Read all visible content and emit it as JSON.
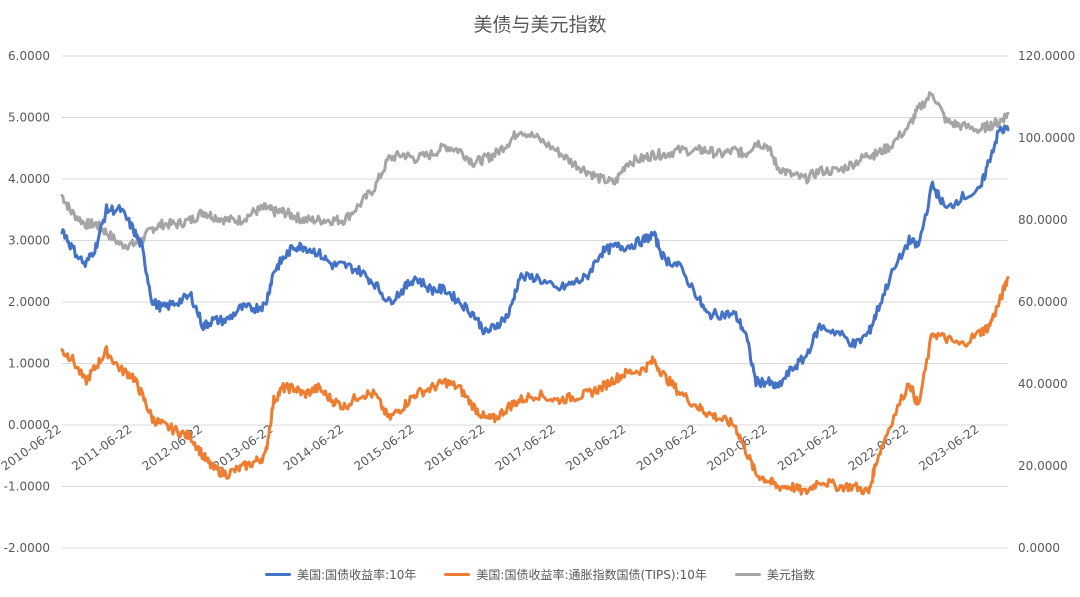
{
  "chart_data": {
    "type": "line",
    "title": "美债与美元指数",
    "left_axis": {
      "ylim": [
        -2,
        6
      ],
      "ticks": [
        "-2.0000",
        "-1.0000",
        "0.0000",
        "1.0000",
        "2.0000",
        "3.0000",
        "4.0000",
        "5.0000",
        "6.0000"
      ]
    },
    "right_axis": {
      "ylim": [
        0,
        120
      ],
      "ticks": [
        "0.0000",
        "20.0000",
        "40.0000",
        "60.0000",
        "80.0000",
        "100.0000",
        "120.0000"
      ]
    },
    "x_ticks": [
      "2010-06-22",
      "2011-06-22",
      "2012-06-22",
      "2013-06-22",
      "2014-06-22",
      "2015-06-22",
      "2016-06-22",
      "2017-06-22",
      "2018-06-22",
      "2019-06-22",
      "2020-06-22",
      "2021-06-22",
      "2022-06-22",
      "2023-06-22"
    ],
    "x_range": [
      2010.47,
      2023.87
    ],
    "series": [
      {
        "name": "美国:国债收益率:10年",
        "axis": "left",
        "color": "#4472C4",
        "x": [
          2010.47,
          2010.6,
          2010.8,
          2010.95,
          2011.1,
          2011.3,
          2011.47,
          2011.6,
          2011.75,
          2011.9,
          2012.1,
          2012.3,
          2012.47,
          2012.6,
          2012.8,
          2013.0,
          2013.2,
          2013.35,
          2013.47,
          2013.6,
          2013.75,
          2013.9,
          2014.1,
          2014.3,
          2014.47,
          2014.7,
          2014.9,
          2015.1,
          2015.3,
          2015.47,
          2015.7,
          2015.9,
          2016.1,
          2016.3,
          2016.47,
          2016.6,
          2016.8,
          2016.95,
          2017.2,
          2017.47,
          2017.7,
          2017.9,
          2018.1,
          2018.3,
          2018.47,
          2018.7,
          2018.85,
          2019.0,
          2019.2,
          2019.47,
          2019.6,
          2019.8,
          2020.0,
          2020.15,
          2020.3,
          2020.47,
          2020.6,
          2020.8,
          2021.0,
          2021.2,
          2021.47,
          2021.7,
          2021.9,
          2022.0,
          2022.2,
          2022.47,
          2022.6,
          2022.8,
          2023.0,
          2023.2,
          2023.47,
          2023.6,
          2023.75,
          2023.87
        ],
        "values": [
          3.2,
          2.9,
          2.6,
          2.9,
          3.5,
          3.5,
          3.2,
          2.9,
          2.0,
          1.9,
          2.0,
          2.1,
          1.6,
          1.7,
          1.7,
          1.9,
          1.9,
          1.95,
          2.5,
          2.7,
          2.9,
          2.9,
          2.8,
          2.6,
          2.6,
          2.5,
          2.3,
          2.0,
          2.2,
          2.4,
          2.2,
          2.2,
          2.0,
          1.8,
          1.5,
          1.6,
          1.8,
          2.4,
          2.4,
          2.2,
          2.3,
          2.4,
          2.8,
          2.9,
          2.9,
          3.0,
          3.1,
          2.7,
          2.6,
          2.1,
          1.8,
          1.8,
          1.8,
          1.5,
          0.7,
          0.7,
          0.6,
          0.9,
          1.1,
          1.6,
          1.5,
          1.3,
          1.5,
          1.8,
          2.4,
          3.0,
          2.9,
          3.9,
          3.5,
          3.7,
          3.8,
          4.3,
          4.8,
          4.8
        ]
      },
      {
        "name": "美国:国债收益率:通胀指数国债(TIPS):10年",
        "axis": "left",
        "color": "#ED7D31",
        "x": [
          2010.47,
          2010.6,
          2010.8,
          2010.95,
          2011.1,
          2011.3,
          2011.47,
          2011.6,
          2011.75,
          2011.9,
          2012.1,
          2012.3,
          2012.47,
          2012.6,
          2012.8,
          2013.0,
          2013.2,
          2013.35,
          2013.47,
          2013.6,
          2013.75,
          2013.9,
          2014.1,
          2014.3,
          2014.47,
          2014.7,
          2014.9,
          2015.1,
          2015.3,
          2015.47,
          2015.7,
          2015.9,
          2016.1,
          2016.3,
          2016.47,
          2016.6,
          2016.8,
          2016.95,
          2017.2,
          2017.47,
          2017.7,
          2017.9,
          2018.1,
          2018.3,
          2018.47,
          2018.7,
          2018.85,
          2019.0,
          2019.2,
          2019.47,
          2019.6,
          2019.8,
          2020.0,
          2020.15,
          2020.3,
          2020.47,
          2020.6,
          2020.8,
          2021.0,
          2021.2,
          2021.47,
          2021.7,
          2021.9,
          2022.0,
          2022.2,
          2022.47,
          2022.6,
          2022.8,
          2023.0,
          2023.2,
          2023.47,
          2023.6,
          2023.75,
          2023.87
        ],
        "values": [
          1.2,
          1.1,
          0.7,
          0.95,
          1.2,
          0.9,
          0.8,
          0.5,
          0.1,
          0.0,
          -0.1,
          -0.2,
          -0.5,
          -0.7,
          -0.8,
          -0.7,
          -0.6,
          -0.5,
          0.4,
          0.6,
          0.6,
          0.5,
          0.6,
          0.4,
          0.3,
          0.5,
          0.5,
          0.1,
          0.3,
          0.5,
          0.6,
          0.7,
          0.6,
          0.3,
          0.1,
          0.1,
          0.3,
          0.4,
          0.5,
          0.4,
          0.45,
          0.5,
          0.6,
          0.75,
          0.85,
          0.9,
          1.05,
          0.8,
          0.55,
          0.3,
          0.2,
          0.1,
          0.0,
          -0.4,
          -0.8,
          -0.9,
          -1.0,
          -1.0,
          -1.1,
          -0.9,
          -1.0,
          -1.0,
          -1.1,
          -0.6,
          0.0,
          0.7,
          0.3,
          1.5,
          1.4,
          1.3,
          1.5,
          1.6,
          2.0,
          2.4
        ]
      },
      {
        "name": "美元指数",
        "axis": "right",
        "color": "#A5A5A5",
        "x": [
          2010.47,
          2010.6,
          2010.8,
          2010.95,
          2011.1,
          2011.3,
          2011.47,
          2011.6,
          2011.75,
          2011.9,
          2012.1,
          2012.3,
          2012.47,
          2012.6,
          2012.8,
          2013.0,
          2013.2,
          2013.35,
          2013.47,
          2013.6,
          2013.75,
          2013.9,
          2014.1,
          2014.3,
          2014.47,
          2014.7,
          2014.9,
          2015.1,
          2015.3,
          2015.47,
          2015.7,
          2015.9,
          2016.1,
          2016.3,
          2016.47,
          2016.6,
          2016.8,
          2016.95,
          2017.2,
          2017.47,
          2017.7,
          2017.9,
          2018.1,
          2018.3,
          2018.47,
          2018.7,
          2018.85,
          2019.0,
          2019.2,
          2019.47,
          2019.6,
          2019.8,
          2020.0,
          2020.15,
          2020.3,
          2020.47,
          2020.6,
          2020.8,
          2021.0,
          2021.2,
          2021.47,
          2021.7,
          2021.9,
          2022.0,
          2022.2,
          2022.47,
          2022.6,
          2022.8,
          2023.0,
          2023.2,
          2023.47,
          2023.6,
          2023.75,
          2023.87
        ],
        "values": [
          86,
          82,
          79,
          79,
          77,
          74,
          74,
          75,
          78,
          79,
          79,
          80,
          82,
          81,
          80,
          80,
          82,
          83,
          82,
          82,
          81,
          80,
          80,
          80,
          80,
          84,
          88,
          95,
          96,
          95,
          96,
          98,
          97,
          94,
          95,
          96,
          99,
          102,
          100,
          97,
          94,
          92,
          90,
          89,
          94,
          95,
          96,
          96,
          97,
          97,
          97,
          96,
          97,
          96,
          99,
          98,
          93,
          91,
          90,
          92,
          92,
          94,
          96,
          96,
          98,
          103,
          107,
          111,
          104,
          103,
          102,
          103,
          104,
          106
        ]
      }
    ]
  }
}
